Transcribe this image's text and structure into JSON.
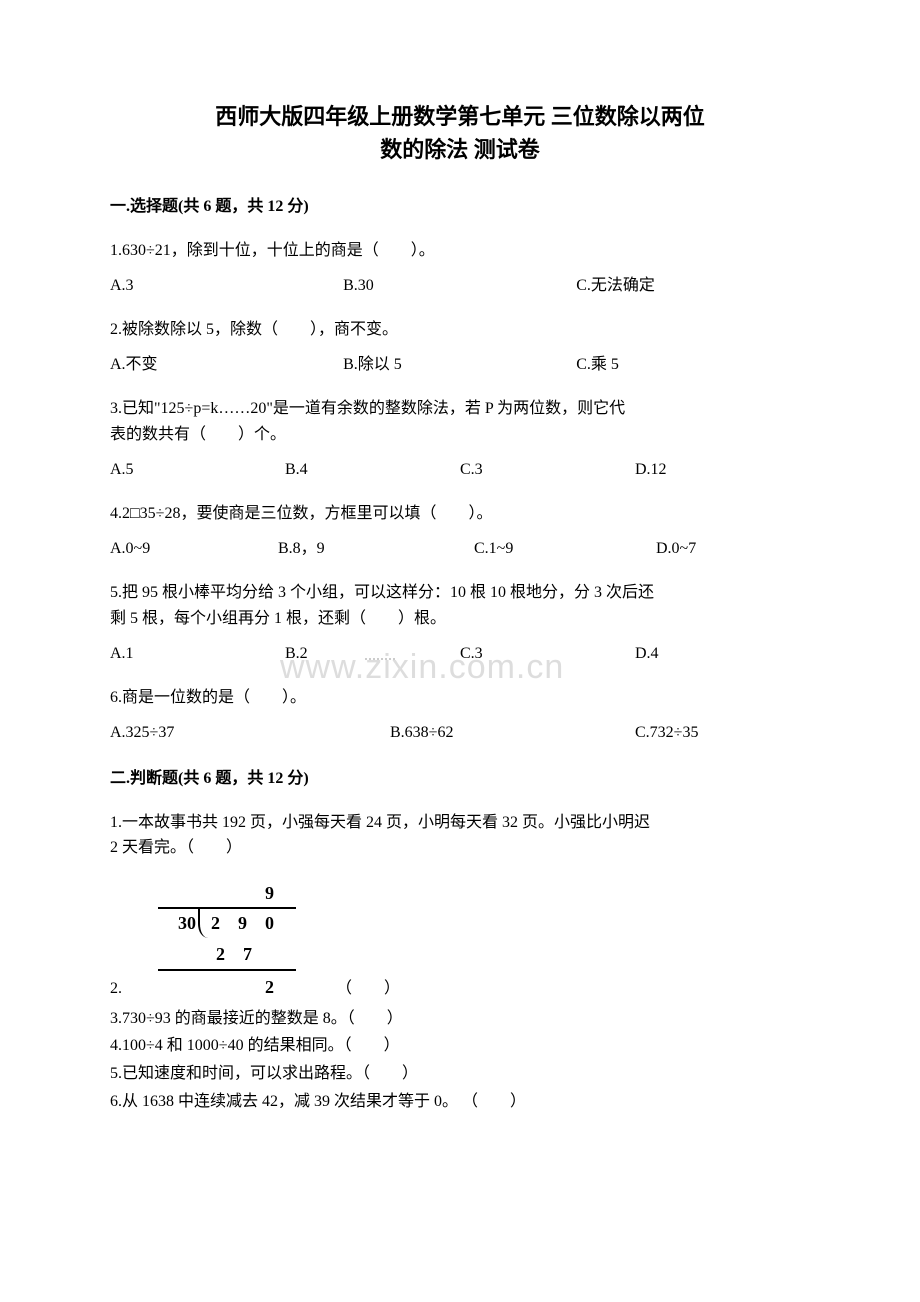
{
  "title_line1": "西师大版四年级上册数学第七单元 三位数除以两位",
  "title_line2": "数的除法 测试卷",
  "watermark_text": "www.zixin.com.cn",
  "section1": {
    "header": "一.选择题(共 6 题，共 12 分)",
    "q1": {
      "text": "1.630÷21，除到十位，十位上的商是（　　）。",
      "a": "A.3",
      "b": "B.30",
      "c": "C.无法确定"
    },
    "q2": {
      "text": "2.被除数除以 5，除数（　　），商不变。",
      "a": "A.不变",
      "b": "B.除以 5",
      "c": "C.乘 5"
    },
    "q3": {
      "text1": "3.已知\"125÷p=k……20\"是一道有余数的整数除法，若 P 为两位数，则它代",
      "text2": "表的数共有（　　）个。",
      "a": "A.5",
      "b": "B.4",
      "c": "C.3",
      "d": "D.12"
    },
    "q4": {
      "text": "4.2□35÷28，要使商是三位数，方框里可以填（　　）。",
      "a": "A.0~9",
      "b": "B.8，9",
      "c": "C.1~9",
      "d": "D.0~7"
    },
    "q5": {
      "text1": "5.把 95 根小棒平均分给 3 个小组，可以这样分：10 根 10 根地分，分 3 次后还",
      "text2": "剩 5 根，每个小组再分 1 根，还剩（　　）根。",
      "a": "A.1",
      "b": "B.2",
      "c": "C.3",
      "d": "D.4"
    },
    "q6": {
      "text": "6.商是一位数的是（　　）。",
      "a": "A.325÷37",
      "b": "B.638÷62",
      "c": "C.732÷35"
    }
  },
  "section2": {
    "header": "二.判断题(共 6 题，共 12 分)",
    "q1": {
      "text1": "1.一本故事书共 192 页，小强每天看 24 页，小明每天看 32 页。小强比小明迟",
      "text2": "2 天看完。（　　）"
    },
    "q2": {
      "num": "2.",
      "blank": "（　　）",
      "division": {
        "quotient": "9",
        "divisor": "30",
        "dividend": "290",
        "sub": "27",
        "remainder": "2"
      }
    },
    "q3": "3.730÷93 的商最接近的整数是 8。（　　）",
    "q4": "4.100÷4 和 1000÷40 的结果相同。（　　）",
    "q5": "5.已知速度和时间，可以求出路程。（　　）",
    "q6": "6.从 1638 中连续减去 42，减 39 次结果才等于 0。 （　　）"
  }
}
